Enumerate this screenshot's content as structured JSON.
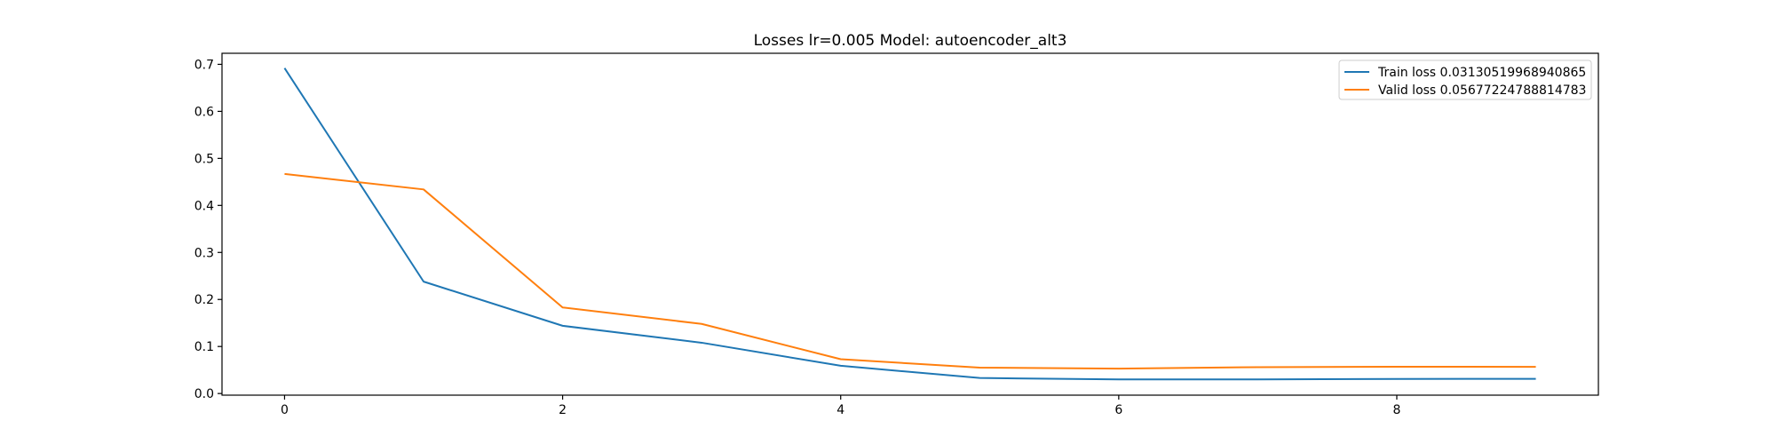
{
  "chart_data": {
    "type": "line",
    "title": "Losses lr=0.005 Model: autoencoder_alt3",
    "xlabel": "",
    "ylabel": "",
    "x": [
      0,
      1,
      2,
      3,
      4,
      5,
      6,
      7,
      8,
      9
    ],
    "xlim": [
      -0.45,
      9.45
    ],
    "ylim": [
      -0.0035,
      0.7235
    ],
    "xticks": [
      0,
      2,
      4,
      6,
      8
    ],
    "yticks": [
      0.0,
      0.1,
      0.2,
      0.3,
      0.4,
      0.5,
      0.6,
      0.7
    ],
    "xtick_labels": [
      "0",
      "2",
      "4",
      "6",
      "8"
    ],
    "ytick_labels": [
      "0.0",
      "0.1",
      "0.2",
      "0.3",
      "0.4",
      "0.5",
      "0.6",
      "0.7"
    ],
    "grid": false,
    "legend_position": "top-right",
    "series": [
      {
        "name": "Train loss 0.03130519968940865",
        "color": "#1f77b4",
        "values": [
          0.692,
          0.238,
          0.144,
          0.108,
          0.059,
          0.033,
          0.03,
          0.03,
          0.031,
          0.0313
        ]
      },
      {
        "name": "Valid loss 0.05677224788814783",
        "color": "#ff7f0e",
        "values": [
          0.467,
          0.434,
          0.183,
          0.148,
          0.073,
          0.055,
          0.053,
          0.056,
          0.057,
          0.0568
        ]
      }
    ]
  }
}
